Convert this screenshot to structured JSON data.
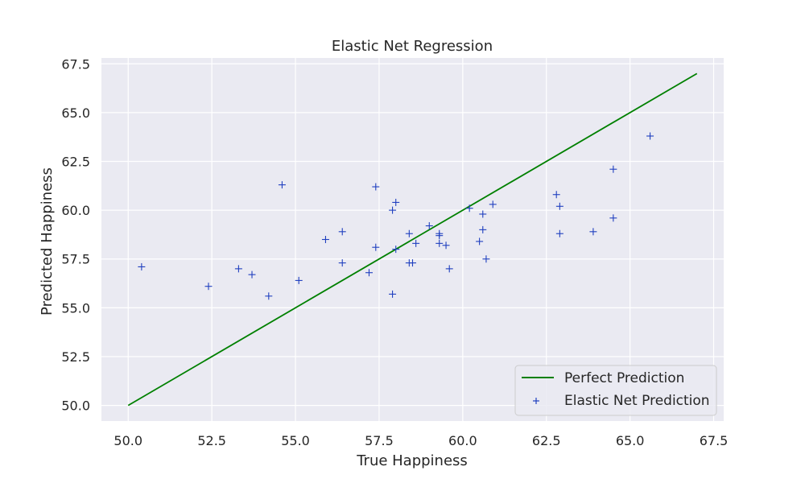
{
  "chart_data": {
    "type": "scatter",
    "title": "Elastic Net Regression",
    "xlabel": "True Happiness",
    "ylabel": "Predicted Happiness",
    "xlim": [
      49.2,
      67.8
    ],
    "ylim": [
      49.2,
      67.8
    ],
    "xticks": [
      "50.0",
      "52.5",
      "55.0",
      "57.5",
      "60.0",
      "62.5",
      "65.0",
      "67.5"
    ],
    "yticks": [
      "50.0",
      "52.5",
      "55.0",
      "57.5",
      "60.0",
      "62.5",
      "65.0",
      "67.5"
    ],
    "grid": true,
    "legend_position": "lower-right",
    "colors": {
      "background": "#eaeaf2",
      "grid": "#ffffff",
      "line": "#008000",
      "points": "#1f3fbf"
    },
    "series": [
      {
        "name": "Perfect Prediction",
        "kind": "line",
        "x": [
          50.0,
          67.0
        ],
        "y": [
          50.0,
          67.0
        ]
      },
      {
        "name": "Elastic Net Prediction",
        "kind": "scatter",
        "marker": "+",
        "points": [
          [
            50.4,
            57.1
          ],
          [
            52.4,
            56.1
          ],
          [
            53.3,
            57.0
          ],
          [
            53.7,
            56.7
          ],
          [
            54.2,
            55.6
          ],
          [
            54.6,
            61.3
          ],
          [
            55.1,
            56.4
          ],
          [
            55.9,
            58.5
          ],
          [
            56.4,
            58.9
          ],
          [
            56.4,
            57.3
          ],
          [
            57.2,
            56.8
          ],
          [
            57.4,
            61.2
          ],
          [
            57.4,
            58.1
          ],
          [
            57.9,
            60.0
          ],
          [
            57.9,
            55.7
          ],
          [
            58.0,
            60.4
          ],
          [
            58.0,
            58.0
          ],
          [
            58.4,
            58.8
          ],
          [
            58.4,
            57.3
          ],
          [
            58.5,
            57.3
          ],
          [
            58.6,
            58.3
          ],
          [
            59.0,
            59.2
          ],
          [
            59.3,
            58.3
          ],
          [
            59.3,
            58.7
          ],
          [
            59.3,
            58.8
          ],
          [
            59.5,
            58.2
          ],
          [
            59.6,
            57.0
          ],
          [
            60.2,
            60.1
          ],
          [
            60.5,
            58.4
          ],
          [
            60.6,
            59.8
          ],
          [
            60.6,
            59.0
          ],
          [
            60.7,
            57.5
          ],
          [
            60.9,
            60.3
          ],
          [
            62.8,
            60.8
          ],
          [
            62.9,
            60.2
          ],
          [
            62.9,
            58.8
          ],
          [
            63.9,
            58.9
          ],
          [
            64.5,
            62.1
          ],
          [
            64.5,
            59.6
          ],
          [
            65.6,
            63.8
          ]
        ]
      }
    ]
  }
}
